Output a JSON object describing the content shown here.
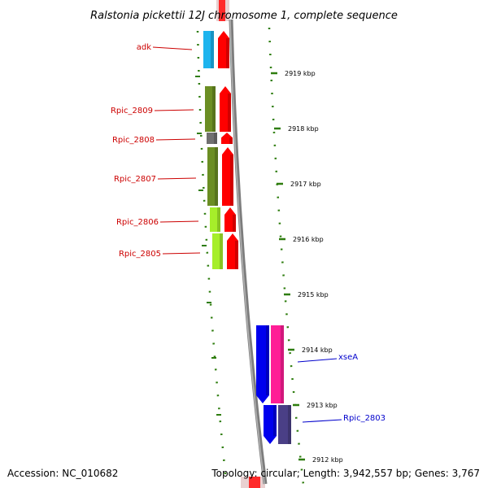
{
  "title": "Ralstonia pickettii 12J chromosome 1, complete sequence",
  "footer": {
    "accession": "Accession: NC_010682",
    "summary": "Topology: circular; Length: 3,942,557 bp; Genes: 3,767"
  },
  "colors": {
    "backbone": "#7a7a7a",
    "tick": "#2e7d0e",
    "label_left": "#cc0000",
    "label_right": "#0000cc",
    "cds_strand": "#ff0000"
  },
  "ticks": [
    {
      "label": "2919 kbp"
    },
    {
      "label": "2918 kbp"
    },
    {
      "label": "2917 kbp"
    },
    {
      "label": "2916 kbp"
    },
    {
      "label": "2915 kbp"
    },
    {
      "label": "2914 kbp"
    },
    {
      "label": "2913 kbp"
    },
    {
      "label": "2912 kbp"
    }
  ],
  "genes_left": [
    {
      "name": "adk",
      "color": "#1eb4ee"
    },
    {
      "name": "Rpic_2809",
      "color": "#6b8e23"
    },
    {
      "name": "Rpic_2808",
      "color": "#707070"
    },
    {
      "name": "Rpic_2807",
      "color": "#6b8e23"
    },
    {
      "name": "Rpic_2806",
      "color": "#a6ee2a"
    },
    {
      "name": "Rpic_2805",
      "color": "#a6ee2a"
    }
  ],
  "genes_right": [
    {
      "name": "xseA",
      "color": "#ff1e96",
      "cds": "#0000ee"
    },
    {
      "name": "Rpic_2803",
      "color": "#4a3f86",
      "cds": "#0000ee"
    }
  ]
}
